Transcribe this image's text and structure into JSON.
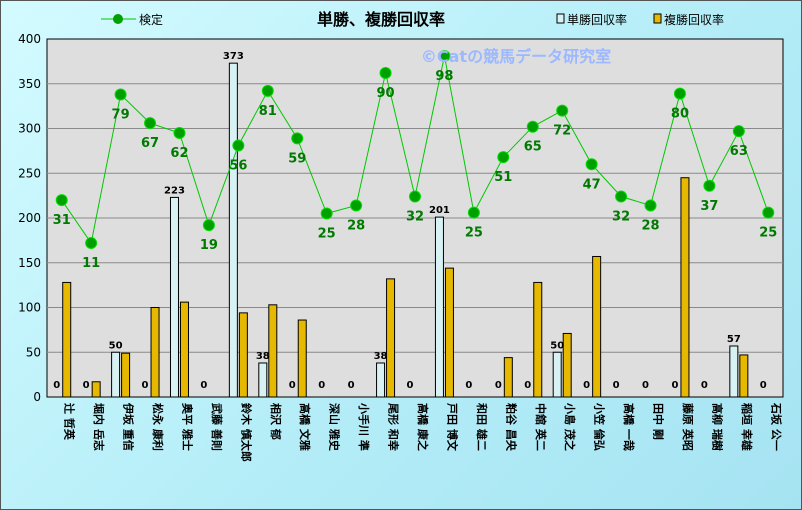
{
  "chart_data": {
    "type": "bar",
    "title": "単勝、複勝回収率",
    "watermark": "©Catの競馬データ研究室",
    "ylim": [
      0,
      400
    ],
    "yticks": [
      0,
      50,
      100,
      150,
      200,
      250,
      300,
      350,
      400
    ],
    "grid": true,
    "legend_position": "top",
    "categories": [
      "辻 哲英",
      "堀内 岳志",
      "伊坂 重信",
      "松永 康利",
      "奥平 雅士",
      "武藤 善則",
      "鈴木 慎太郎",
      "相沢 郁",
      "高橋 文雅",
      "深山 雅史",
      "小手川 準",
      "尾形 和幸",
      "高橋 康之",
      "戸田 博文",
      "和田 雄二",
      "粕谷 昌央",
      "中舘 英二",
      "小島 茂之",
      "小笠 倫弘",
      "高橋 一哉",
      "田中 剛",
      "藤原 英昭",
      "高柳 瑞樹",
      "稲垣 幸雄",
      "石坂 公一"
    ],
    "series": [
      {
        "name": "単勝回収率",
        "type": "bar",
        "color": "#d8f2f4",
        "values": [
          0,
          0,
          50,
          0,
          223,
          0,
          373,
          38,
          0,
          0,
          0,
          38,
          0,
          201,
          0,
          0,
          0,
          50,
          0,
          0,
          0,
          0,
          0,
          57,
          0
        ],
        "labels": [
          "0",
          "0",
          "50",
          "0",
          "223",
          "0",
          "373",
          "38",
          "0",
          "0",
          "0",
          "38",
          "0",
          "201",
          "0",
          "0",
          "0",
          "50",
          "0",
          "0",
          "0",
          "0",
          "0",
          "57",
          "0"
        ]
      },
      {
        "name": "複勝回収率",
        "type": "bar",
        "color": "#e6b800",
        "values": [
          128,
          17,
          49,
          100,
          106,
          0,
          94,
          103,
          86,
          0,
          0,
          132,
          0,
          144,
          0,
          44,
          128,
          71,
          157,
          0,
          0,
          245,
          0,
          47,
          0
        ]
      },
      {
        "name": "検定",
        "type": "line",
        "color": "#00c800",
        "values": [
          220,
          172,
          338,
          306,
          295,
          192,
          281,
          342,
          289,
          205,
          214,
          362,
          224,
          381,
          206,
          268,
          302,
          320,
          260,
          224,
          214,
          339,
          236,
          297,
          206
        ],
        "labels": [
          "31",
          "11",
          "79",
          "67",
          "62",
          "19",
          "56",
          "81",
          "59",
          "25",
          "28",
          "90",
          "32",
          "98",
          "25",
          "51",
          "65",
          "72",
          "47",
          "32",
          "28",
          "80",
          "37",
          "63",
          "25"
        ]
      }
    ]
  }
}
